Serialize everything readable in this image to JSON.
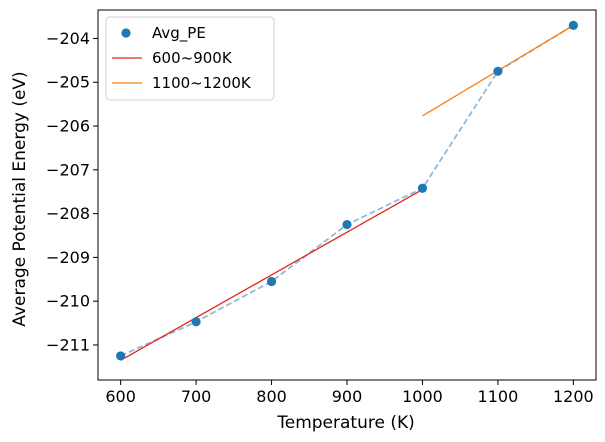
{
  "chart_data": {
    "type": "scatter",
    "xlabel": "Temperature (K)",
    "ylabel": "Average Potential Energy (eV)",
    "xlim": [
      570,
      1230
    ],
    "ylim": [
      -211.8,
      -203.35
    ],
    "x_ticks": [
      600,
      700,
      800,
      900,
      1000,
      1100,
      1200
    ],
    "y_ticks": [
      -211,
      -210,
      -209,
      -208,
      -207,
      -206,
      -205,
      -204
    ],
    "x_tick_labels": [
      "600",
      "700",
      "800",
      "900",
      "1000",
      "1100",
      "1200"
    ],
    "y_tick_labels": [
      "−211",
      "−210",
      "−209",
      "−208",
      "−207",
      "−206",
      "−205",
      "−204"
    ],
    "grid": false,
    "legend_position": "top-left",
    "series": [
      {
        "name": "Avg_PE",
        "kind": "scatter",
        "color": "#1f77b4",
        "x": [
          600,
          700,
          800,
          900,
          1000,
          1100,
          1200
        ],
        "y": [
          -211.25,
          -210.47,
          -209.55,
          -208.25,
          -207.42,
          -204.75,
          -203.7
        ]
      },
      {
        "name": "",
        "kind": "dashed-line",
        "color": "#8fbad9",
        "x": [
          600,
          700,
          800,
          900,
          1000,
          1100,
          1200
        ],
        "y": [
          -211.25,
          -210.47,
          -209.55,
          -208.25,
          -207.42,
          -204.75,
          -203.7
        ]
      },
      {
        "name": "600~900K",
        "kind": "line",
        "color": "#e8241c",
        "x": [
          600,
          1000
        ],
        "y": [
          -211.35,
          -207.45
        ]
      },
      {
        "name": "1100~1200K",
        "kind": "line",
        "color": "#ff7f0e",
        "x": [
          1000,
          1200
        ],
        "y": [
          -205.77,
          -203.7
        ]
      }
    ]
  }
}
